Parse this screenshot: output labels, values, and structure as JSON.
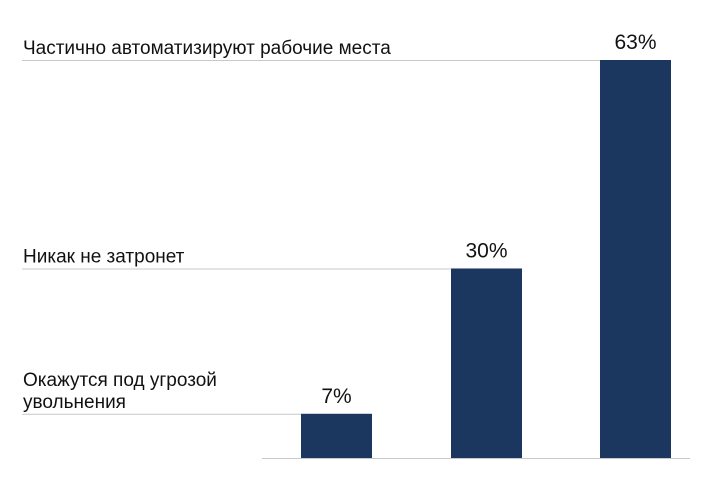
{
  "chart_data": {
    "type": "bar",
    "categories": [
      "Окажутся под угрозой увольнения",
      "Никак не затронет",
      "Частично автоматизируют рабочие места"
    ],
    "category_label_lines": [
      [
        "Окажутся под угрозой",
        "увольнения"
      ],
      [
        "Никак не затронет"
      ],
      [
        "Частично автоматизируют рабочие места"
      ]
    ],
    "values": [
      7,
      30,
      63
    ],
    "value_labels": [
      "7%",
      "30%",
      "63%"
    ],
    "unit": "%",
    "title": "",
    "xlabel": "",
    "ylabel": "",
    "ylim": [
      0,
      63
    ],
    "grid": false,
    "legend": "none",
    "colors": {
      "bar": "#1b365f",
      "guide_line": "#c8c8c8",
      "baseline": "#c8c8c8",
      "text": "#111111"
    }
  }
}
